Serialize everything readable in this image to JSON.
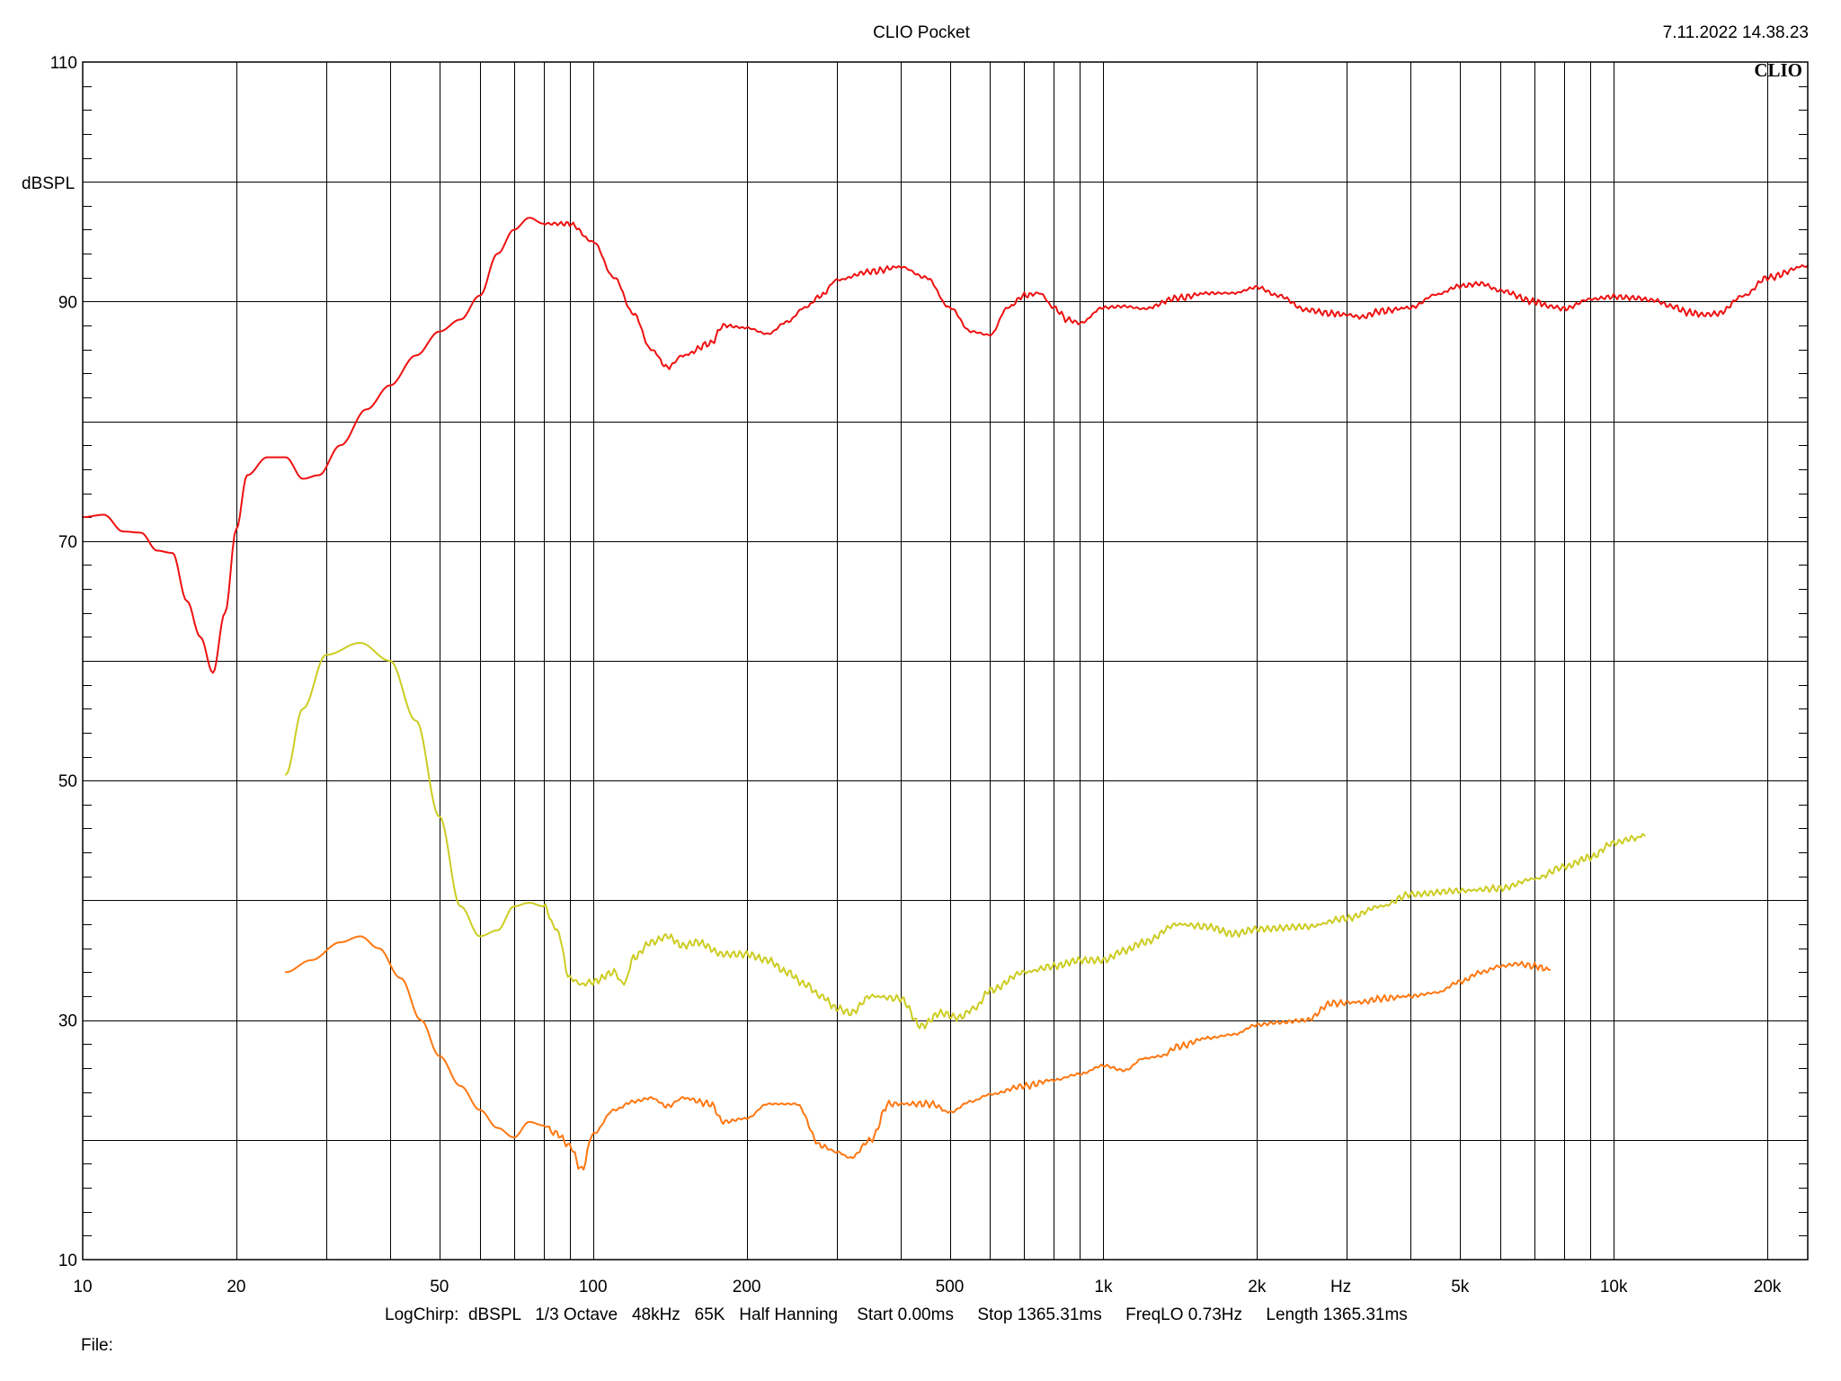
{
  "header": {
    "title": "CLIO Pocket",
    "timestamp": "7.11.2022 14.38.23",
    "brand": "CLIO"
  },
  "footer": {
    "settings": "LogChirp:  dBSPL   1/3 Octave   48kHz   65K   Half Hanning    Start 0.00ms     Stop 1365.31ms     FreqLO 0.73Hz     Length 1365.31ms",
    "file_label": "File:"
  },
  "chart_data": {
    "type": "line",
    "title": "CLIO Pocket",
    "xlabel": "Hz",
    "ylabel": "dBSPL",
    "x_scale": "log",
    "xlim": [
      10,
      24000
    ],
    "ylim": [
      10,
      110
    ],
    "grid": true,
    "x_ticks": [
      {
        "value": 10,
        "label": "10"
      },
      {
        "value": 20,
        "label": "20"
      },
      {
        "value": 50,
        "label": "50"
      },
      {
        "value": 100,
        "label": "100"
      },
      {
        "value": 200,
        "label": "200"
      },
      {
        "value": 500,
        "label": "500"
      },
      {
        "value": 1000,
        "label": "1k"
      },
      {
        "value": 2000,
        "label": "2k"
      },
      {
        "value": 5000,
        "label": "5k"
      },
      {
        "value": 10000,
        "label": "10k"
      },
      {
        "value": 20000,
        "label": "20k"
      }
    ],
    "y_ticks": [
      {
        "value": 10,
        "label": "10"
      },
      {
        "value": 30,
        "label": "30"
      },
      {
        "value": 50,
        "label": "50"
      },
      {
        "value": 70,
        "label": "70"
      },
      {
        "value": 90,
        "label": "90"
      },
      {
        "value": 110,
        "label": "110"
      }
    ],
    "series": [
      {
        "color": "#ee1111",
        "points": [
          [
            10,
            72
          ],
          [
            11,
            72.2
          ],
          [
            12,
            70.8
          ],
          [
            13,
            70.7
          ],
          [
            14,
            69.2
          ],
          [
            15,
            69
          ],
          [
            16,
            65
          ],
          [
            17,
            62
          ],
          [
            18,
            59
          ],
          [
            19,
            64
          ],
          [
            20,
            71
          ],
          [
            21,
            75.5
          ],
          [
            23,
            77
          ],
          [
            25,
            77
          ],
          [
            27,
            75.2
          ],
          [
            29,
            75.5
          ],
          [
            32,
            78
          ],
          [
            36,
            81
          ],
          [
            40,
            83
          ],
          [
            45,
            85.5
          ],
          [
            50,
            87.5
          ],
          [
            55,
            88.5
          ],
          [
            60,
            90.5
          ],
          [
            65,
            94
          ],
          [
            70,
            96
          ],
          [
            75,
            97
          ],
          [
            80,
            96.5
          ],
          [
            90,
            96.5
          ],
          [
            100,
            95
          ],
          [
            110,
            92
          ],
          [
            120,
            89
          ],
          [
            130,
            86
          ],
          [
            140,
            84.5
          ],
          [
            150,
            85.5
          ],
          [
            170,
            86.5
          ],
          [
            180,
            88
          ],
          [
            200,
            87.8
          ],
          [
            220,
            87.3
          ],
          [
            240,
            88.3
          ],
          [
            260,
            89.5
          ],
          [
            280,
            90.5
          ],
          [
            300,
            91.8
          ],
          [
            350,
            92.5
          ],
          [
            400,
            92.9
          ],
          [
            450,
            92
          ],
          [
            500,
            89.5
          ],
          [
            550,
            87.5
          ],
          [
            600,
            87.2
          ],
          [
            650,
            89.5
          ],
          [
            700,
            90.5
          ],
          [
            750,
            90.7
          ],
          [
            800,
            89.5
          ],
          [
            850,
            88.5
          ],
          [
            900,
            88.2
          ],
          [
            1000,
            89.5
          ],
          [
            1100,
            89.6
          ],
          [
            1200,
            89.4
          ],
          [
            1400,
            90.3
          ],
          [
            1600,
            90.7
          ],
          [
            1800,
            90.7
          ],
          [
            2000,
            91.2
          ],
          [
            2200,
            90.5
          ],
          [
            2500,
            89.3
          ],
          [
            2800,
            89
          ],
          [
            3000,
            88.9
          ],
          [
            3200,
            88.7
          ],
          [
            3500,
            89.2
          ],
          [
            4000,
            89.5
          ],
          [
            4500,
            90.6
          ],
          [
            5000,
            91.3
          ],
          [
            5500,
            91.5
          ],
          [
            6000,
            90.9
          ],
          [
            7000,
            90
          ],
          [
            7500,
            89.6
          ],
          [
            8000,
            89.4
          ],
          [
            9000,
            90.2
          ],
          [
            10000,
            90.4
          ],
          [
            11000,
            90.3
          ],
          [
            12000,
            90.1
          ],
          [
            13000,
            89.6
          ],
          [
            14000,
            89.1
          ],
          [
            15000,
            88.9
          ],
          [
            16000,
            89
          ],
          [
            18000,
            90.5
          ],
          [
            20000,
            92
          ],
          [
            24000,
            93
          ]
        ]
      },
      {
        "color": "#cccc22",
        "points": [
          [
            25,
            50.5
          ],
          [
            27,
            56
          ],
          [
            30,
            60.5
          ],
          [
            35,
            61.5
          ],
          [
            40,
            60
          ],
          [
            45,
            55
          ],
          [
            50,
            47
          ],
          [
            55,
            39.5
          ],
          [
            60,
            37
          ],
          [
            65,
            37.5
          ],
          [
            70,
            39.5
          ],
          [
            75,
            39.8
          ],
          [
            80,
            39.5
          ],
          [
            85,
            37.5
          ],
          [
            90,
            33.5
          ],
          [
            95,
            33
          ],
          [
            100,
            33.2
          ],
          [
            110,
            34
          ],
          [
            115,
            33
          ],
          [
            120,
            35.2
          ],
          [
            130,
            36.5
          ],
          [
            140,
            37
          ],
          [
            150,
            36.2
          ],
          [
            160,
            36.5
          ],
          [
            180,
            35.5
          ],
          [
            200,
            35.5
          ],
          [
            220,
            35
          ],
          [
            240,
            34
          ],
          [
            260,
            33
          ],
          [
            280,
            32
          ],
          [
            300,
            31
          ],
          [
            320,
            30.6
          ],
          [
            350,
            32
          ],
          [
            400,
            31.8
          ],
          [
            440,
            29.5
          ],
          [
            480,
            30.6
          ],
          [
            520,
            30.2
          ],
          [
            560,
            31
          ],
          [
            600,
            32.5
          ],
          [
            700,
            34
          ],
          [
            800,
            34.5
          ],
          [
            900,
            35
          ],
          [
            1000,
            35
          ],
          [
            1100,
            35.8
          ],
          [
            1200,
            36.5
          ],
          [
            1400,
            38
          ],
          [
            1600,
            37.8
          ],
          [
            1800,
            37.2
          ],
          [
            2000,
            37.6
          ],
          [
            2500,
            37.8
          ],
          [
            3000,
            38.5
          ],
          [
            3500,
            39.5
          ],
          [
            4000,
            40.5
          ],
          [
            5000,
            40.8
          ],
          [
            6000,
            41
          ],
          [
            7000,
            41.8
          ],
          [
            8000,
            42.8
          ],
          [
            9000,
            43.6
          ],
          [
            10000,
            44.8
          ],
          [
            11000,
            45.2
          ],
          [
            11500,
            45.4
          ]
        ]
      },
      {
        "color": "#ff7711",
        "points": [
          [
            25,
            34
          ],
          [
            28,
            35
          ],
          [
            32,
            36.5
          ],
          [
            35,
            37
          ],
          [
            38,
            36
          ],
          [
            42,
            33.5
          ],
          [
            46,
            30
          ],
          [
            50,
            27
          ],
          [
            55,
            24.5
          ],
          [
            60,
            22.5
          ],
          [
            65,
            21
          ],
          [
            70,
            20.2
          ],
          [
            75,
            21.5
          ],
          [
            80,
            21.2
          ],
          [
            85,
            20.5
          ],
          [
            90,
            19.5
          ],
          [
            95,
            17.5
          ],
          [
            100,
            20.5
          ],
          [
            110,
            22.5
          ],
          [
            120,
            23.2
          ],
          [
            130,
            23.5
          ],
          [
            140,
            22.8
          ],
          [
            150,
            23.5
          ],
          [
            170,
            23
          ],
          [
            180,
            21.5
          ],
          [
            200,
            21.8
          ],
          [
            220,
            23
          ],
          [
            250,
            23
          ],
          [
            280,
            19.5
          ],
          [
            300,
            19
          ],
          [
            320,
            18.5
          ],
          [
            350,
            20
          ],
          [
            380,
            23
          ],
          [
            420,
            23
          ],
          [
            460,
            23
          ],
          [
            500,
            22.3
          ],
          [
            550,
            23.2
          ],
          [
            600,
            23.8
          ],
          [
            700,
            24.5
          ],
          [
            800,
            25
          ],
          [
            900,
            25.5
          ],
          [
            1000,
            26.2
          ],
          [
            1100,
            25.8
          ],
          [
            1200,
            26.8
          ],
          [
            1300,
            27
          ],
          [
            1400,
            27.8
          ],
          [
            1600,
            28.5
          ],
          [
            1800,
            28.8
          ],
          [
            2000,
            29.6
          ],
          [
            2200,
            29.8
          ],
          [
            2500,
            30
          ],
          [
            2800,
            31.4
          ],
          [
            3200,
            31.5
          ],
          [
            3500,
            31.8
          ],
          [
            4000,
            32
          ],
          [
            4500,
            32.3
          ],
          [
            5000,
            33.2
          ],
          [
            5500,
            34
          ],
          [
            6000,
            34.5
          ],
          [
            6500,
            34.7
          ],
          [
            7000,
            34.5
          ],
          [
            7500,
            34.2
          ]
        ]
      }
    ]
  }
}
